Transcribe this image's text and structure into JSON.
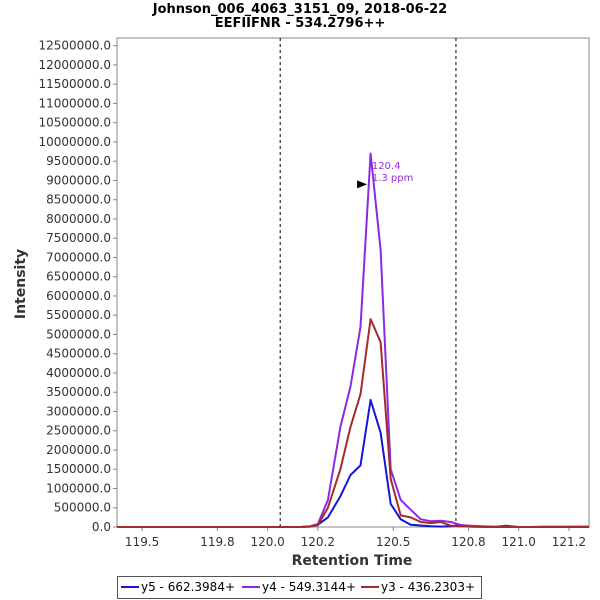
{
  "chart_data": {
    "type": "line",
    "title": "Johnson_006_4063_3151_09, 2018-06-22",
    "subtitle": "EEFIIFNR - 534.2796++",
    "xlabel": "Retention Time",
    "ylabel": "Intensity",
    "xlim": [
      119.4,
      121.28
    ],
    "ylim": [
      0,
      12700000
    ],
    "x_ticks": [
      119.5,
      119.8,
      120.0,
      120.2,
      120.5,
      120.8,
      121.0,
      121.2
    ],
    "x_tick_labels": [
      "119.5",
      "119.8",
      "120.0",
      "120.2",
      "120.5",
      "120.8",
      "121.0",
      "121.2"
    ],
    "y_ticks": [
      0,
      500000,
      1000000,
      1500000,
      2000000,
      2500000,
      3000000,
      3500000,
      4000000,
      4500000,
      5000000,
      5500000,
      6000000,
      6500000,
      7000000,
      7500000,
      8000000,
      8500000,
      9000000,
      9500000,
      10000000,
      10500000,
      11000000,
      11500000,
      12000000,
      12500000
    ],
    "y_tick_labels": [
      "0.0",
      "500000.0",
      "1000000.0",
      "1500000.0",
      "2000000.0",
      "2500000.0",
      "3000000.0",
      "3500000.0",
      "4000000.0",
      "4500000.0",
      "5000000.0",
      "5500000.0",
      "6000000.0",
      "6500000.0",
      "7000000.0",
      "7500000.0",
      "8000000.0",
      "8500000.0",
      "9000000.0",
      "9500000.0",
      "10000000.0",
      "10500000.0",
      "11000000.0",
      "11500000.0",
      "12000000.0",
      "12500000.0"
    ],
    "boundaries": [
      120.05,
      120.75
    ],
    "peak_marker": {
      "x": 120.4,
      "y": 8900000
    },
    "annotation": {
      "lines": [
        "120.4",
        "1.3 ppm"
      ],
      "x": 120.415,
      "y": 9300000,
      "color": "#9a30d8"
    },
    "legend_position": "bottom",
    "series": [
      {
        "name": "y5 - 662.3984+",
        "color": "#1515d8",
        "x": [
          119.4,
          120.13,
          120.17,
          120.2,
          120.24,
          120.29,
          120.33,
          120.37,
          120.41,
          120.45,
          120.49,
          120.53,
          120.57,
          120.61,
          120.65,
          120.69,
          120.73,
          120.77,
          120.81,
          120.85,
          120.9,
          120.95,
          121.0,
          121.05,
          121.1,
          121.2,
          121.28
        ],
        "y": [
          0,
          0,
          10000,
          60000,
          250000,
          800000,
          1350000,
          1600000,
          3300000,
          2450000,
          600000,
          200000,
          60000,
          40000,
          20000,
          10000,
          20000,
          50000,
          10000,
          5000,
          0,
          30000,
          0,
          0,
          0,
          0,
          5000
        ]
      },
      {
        "name": "y4 - 549.3144+",
        "color": "#8a2be2",
        "x": [
          119.4,
          120.13,
          120.17,
          120.2,
          120.24,
          120.29,
          120.33,
          120.37,
          120.41,
          120.45,
          120.49,
          120.53,
          120.57,
          120.61,
          120.65,
          120.69,
          120.73,
          120.77,
          120.81,
          120.85,
          120.9,
          120.95,
          121.0,
          121.05,
          121.1,
          121.2,
          121.28
        ],
        "y": [
          0,
          0,
          20000,
          80000,
          700000,
          2600000,
          3650000,
          5200000,
          9700000,
          7200000,
          1500000,
          700000,
          450000,
          200000,
          150000,
          160000,
          130000,
          50000,
          30000,
          20000,
          10000,
          10000,
          0,
          0,
          10000,
          10000,
          10000
        ]
      },
      {
        "name": "y3 - 436.2303+",
        "color": "#a52a2a",
        "x": [
          119.4,
          120.13,
          120.17,
          120.2,
          120.24,
          120.29,
          120.33,
          120.37,
          120.41,
          120.45,
          120.49,
          120.53,
          120.57,
          120.61,
          120.65,
          120.69,
          120.73,
          120.77,
          120.81,
          120.85,
          120.9,
          120.95,
          121.0,
          121.05,
          121.1,
          121.2,
          121.28
        ],
        "y": [
          0,
          0,
          15000,
          50000,
          500000,
          1500000,
          2600000,
          3450000,
          5400000,
          4800000,
          1250000,
          300000,
          250000,
          130000,
          100000,
          130000,
          30000,
          20000,
          10000,
          5000,
          0,
          0,
          0,
          0,
          0,
          0,
          0
        ]
      }
    ]
  }
}
